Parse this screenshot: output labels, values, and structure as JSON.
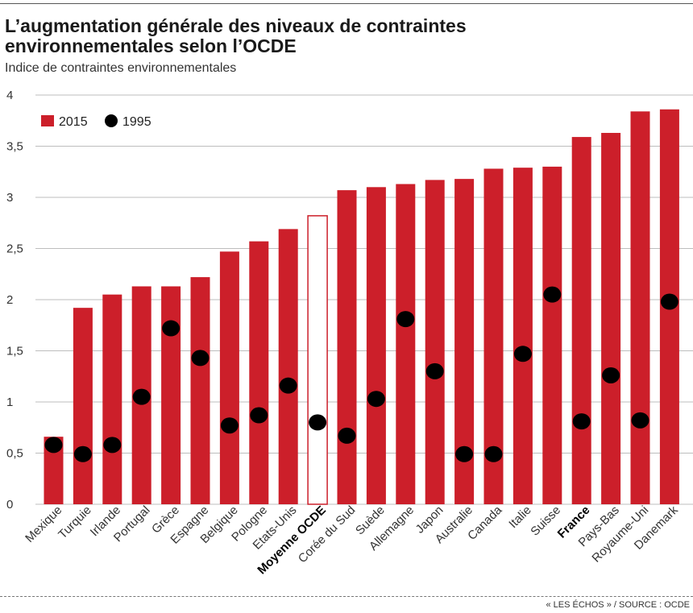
{
  "header": {
    "title": "L’augmentation générale des niveaux de contraintes environnementales selon l’OCDE",
    "subtitle": "Indice de contraintes environnementales"
  },
  "footer": {
    "source": "« LES ÉCHOS » / SOURCE : OCDE"
  },
  "colors": {
    "bar_2015": "#cc1f2a",
    "dot_1995": "#000000",
    "grid": "#bdbdbd"
  },
  "chart_data": {
    "type": "bar",
    "title": "L’augmentation générale des niveaux de contraintes environnementales selon l’OCDE",
    "ylabel": "Indice de contraintes environnementales",
    "xlabel": "",
    "ylim": [
      0,
      4
    ],
    "yticks": [
      0,
      0.5,
      1,
      1.5,
      2,
      2.5,
      3,
      3.5,
      4
    ],
    "ytick_labels": [
      "0",
      "0,5",
      "1",
      "1,5",
      "2",
      "2,5",
      "3",
      "3,5",
      "4"
    ],
    "grid": true,
    "legend_position": "top-left",
    "categories": [
      "Mexique",
      "Turquie",
      "Irlande",
      "Portugal",
      "Grèce",
      "Espagne",
      "Belgique",
      "Pologne",
      "Etats-Unis",
      "Moyenne OCDE",
      "Corée du Sud",
      "Suède",
      "Allemagne",
      "Japon",
      "Australie",
      "Canada",
      "Italie",
      "Suisse",
      "France",
      "Pays-Bas",
      "Royaume-Uni",
      "Danemark"
    ],
    "highlighted_categories": [
      "Moyenne OCDE",
      "France"
    ],
    "outlined_categories": [
      "Moyenne OCDE"
    ],
    "series": [
      {
        "name": "2015",
        "kind": "bar",
        "values": [
          0.66,
          1.92,
          2.05,
          2.13,
          2.13,
          2.22,
          2.47,
          2.57,
          2.69,
          2.82,
          3.07,
          3.1,
          3.13,
          3.17,
          3.18,
          3.28,
          3.29,
          3.3,
          3.59,
          3.63,
          3.84,
          3.86
        ]
      },
      {
        "name": "1995",
        "kind": "dot",
        "values": [
          0.58,
          0.49,
          0.58,
          1.05,
          1.72,
          1.43,
          0.77,
          0.87,
          1.16,
          0.8,
          0.67,
          1.03,
          1.81,
          1.3,
          0.49,
          0.49,
          1.47,
          2.05,
          0.81,
          1.26,
          0.82,
          1.98
        ]
      }
    ]
  }
}
